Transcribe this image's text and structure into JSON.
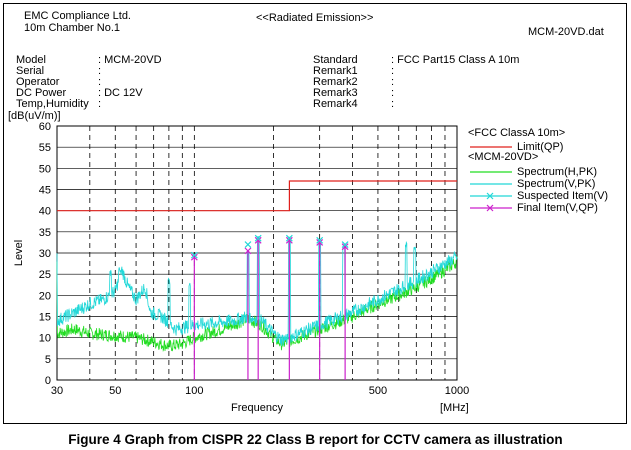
{
  "header": {
    "company": "EMC Compliance Ltd.",
    "chamber": "10m Chamber No.1",
    "test_title": "<<Radiated Emission>>",
    "file_name": "MCM-20VD.dat"
  },
  "info_left": [
    {
      "label": "Model",
      "value": ": MCM-20VD"
    },
    {
      "label": "Serial",
      "value": ":"
    },
    {
      "label": "Operator",
      "value": ":"
    },
    {
      "label": "DC Power",
      "value": ": DC 12V"
    },
    {
      "label": "Temp,Humidity",
      "value": ":"
    }
  ],
  "info_right": [
    {
      "label": "Standard",
      "value": ": FCC Part15 Class A 10m"
    },
    {
      "label": "Remark1",
      "value": ":"
    },
    {
      "label": "Remark2",
      "value": ":"
    },
    {
      "label": "Remark3",
      "value": ":"
    },
    {
      "label": "Remark4",
      "value": ":"
    }
  ],
  "legend": {
    "group1_title": "<FCC ClassA 10m>",
    "group2_title": "<MCM-20VD>",
    "items": [
      {
        "name": "Limit(QP)",
        "color": "#e0201c",
        "marker": "none"
      },
      {
        "name": "Spectrum(H,PK)",
        "color": "#22dd22",
        "marker": "none"
      },
      {
        "name": "Spectrum(V,PK)",
        "color": "#22d8d8",
        "marker": "none"
      },
      {
        "name": "Suspected Item(V)",
        "color": "#22d8d8",
        "marker": "x"
      },
      {
        "name": "Final Item(V,QP)",
        "color": "#cc22cc",
        "marker": "x"
      }
    ]
  },
  "caption": "Figure 4 Graph from CISPR 22 Class B report for CCTV camera as illustration",
  "chart_data": {
    "type": "line",
    "ylabel_top": "[dB(uV/m)]",
    "ylabel": "Level",
    "xlabel": "Frequency",
    "xunit": "[MHz]",
    "xscale": "log",
    "xlim": [
      30,
      1000
    ],
    "ylim": [
      0,
      60
    ],
    "grid": true,
    "legend_position": "top-right",
    "y_ticks": [
      0,
      5,
      10,
      15,
      20,
      25,
      30,
      35,
      40,
      45,
      50,
      55,
      60
    ],
    "x_tick_labels": [
      {
        "value": 30,
        "label": "30"
      },
      {
        "value": 50,
        "label": "50"
      },
      {
        "value": 100,
        "label": "100"
      },
      {
        "value": 500,
        "label": "500"
      },
      {
        "value": 1000,
        "label": "1000"
      }
    ],
    "x_grid": [
      30,
      40,
      50,
      60,
      70,
      80,
      90,
      100,
      200,
      300,
      400,
      500,
      600,
      700,
      800,
      900,
      1000
    ],
    "limit": {
      "name": "Limit(QP)",
      "points": [
        [
          30,
          40
        ],
        [
          230,
          40
        ],
        [
          230,
          47
        ],
        [
          1000,
          47
        ]
      ]
    },
    "spectrum_h": {
      "name": "Spectrum(H,PK)",
      "points": [
        [
          30,
          11
        ],
        [
          35,
          12
        ],
        [
          40,
          11
        ],
        [
          50,
          10.5
        ],
        [
          60,
          10
        ],
        [
          70,
          9
        ],
        [
          80,
          8
        ],
        [
          90,
          8.5
        ],
        [
          100,
          10
        ],
        [
          120,
          11.5
        ],
        [
          140,
          13
        ],
        [
          160,
          14.5
        ],
        [
          180,
          13
        ],
        [
          200,
          10
        ],
        [
          215,
          8.5
        ],
        [
          250,
          10
        ],
        [
          300,
          12
        ],
        [
          400,
          15
        ],
        [
          500,
          18
        ],
        [
          600,
          20
        ],
        [
          700,
          22
        ],
        [
          800,
          24
        ],
        [
          900,
          26
        ],
        [
          1000,
          28
        ]
      ]
    },
    "spectrum_v": {
      "name": "Spectrum(V,PK)",
      "points": [
        [
          30,
          14
        ],
        [
          35,
          16
        ],
        [
          40,
          18
        ],
        [
          45,
          19
        ],
        [
          50,
          21
        ],
        [
          53,
          26
        ],
        [
          56,
          22
        ],
        [
          60,
          19
        ],
        [
          65,
          22
        ],
        [
          68,
          16
        ],
        [
          75,
          15
        ],
        [
          85,
          12
        ],
        [
          100,
          13
        ],
        [
          120,
          13.5
        ],
        [
          140,
          14
        ],
        [
          160,
          15
        ],
        [
          180,
          14
        ],
        [
          200,
          11
        ],
        [
          215,
          9.5
        ],
        [
          250,
          11
        ],
        [
          300,
          13
        ],
        [
          400,
          16
        ],
        [
          500,
          19
        ],
        [
          600,
          21.5
        ],
        [
          700,
          23.5
        ],
        [
          800,
          25.5
        ],
        [
          900,
          27.5
        ],
        [
          1000,
          29
        ]
      ]
    },
    "spectral_spikes": [
      {
        "x": 48,
        "y": 26
      },
      {
        "x": 52,
        "y": 27
      },
      {
        "x": 80,
        "y": 24
      },
      {
        "x": 96,
        "y": 23
      },
      {
        "x": 160,
        "y": 31
      },
      {
        "x": 175,
        "y": 34
      },
      {
        "x": 230,
        "y": 34
      },
      {
        "x": 300,
        "y": 33.5
      },
      {
        "x": 370,
        "y": 32
      },
      {
        "x": 640,
        "y": 32.5
      },
      {
        "x": 690,
        "y": 31.5
      }
    ],
    "suspected_items": [
      {
        "x": 100,
        "y": 29.5
      },
      {
        "x": 160,
        "y": 32
      },
      {
        "x": 175,
        "y": 33.5
      },
      {
        "x": 230,
        "y": 33.5
      },
      {
        "x": 300,
        "y": 33
      },
      {
        "x": 375,
        "y": 32
      }
    ],
    "final_items": [
      {
        "x": 100,
        "y": 29
      },
      {
        "x": 160,
        "y": 30.5
      },
      {
        "x": 175,
        "y": 33
      },
      {
        "x": 230,
        "y": 33
      },
      {
        "x": 300,
        "y": 32.5
      },
      {
        "x": 375,
        "y": 31.5
      }
    ]
  }
}
